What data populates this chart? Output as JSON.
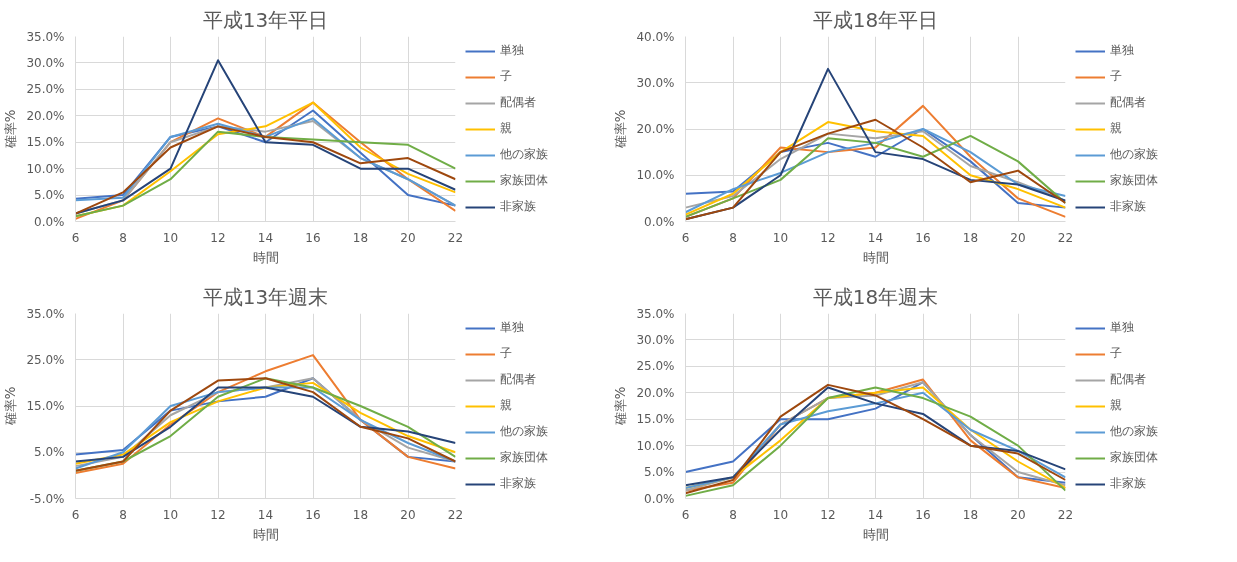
{
  "chart_data": [
    {
      "type": "line",
      "title": "平成13年平日",
      "xlabel": "時間",
      "ylabel": "確率%",
      "x": [
        6,
        8,
        10,
        12,
        14,
        16,
        18,
        20,
        22
      ],
      "xlim": [
        6,
        22
      ],
      "xticks": [
        6,
        8,
        10,
        12,
        14,
        16,
        18,
        20,
        22
      ],
      "ylim": [
        0,
        35
      ],
      "yticks": [
        {
          "value": 0,
          "label": "0.0%"
        },
        {
          "value": 5,
          "label": "5.0%"
        },
        {
          "value": 10,
          "label": "10.0%"
        },
        {
          "value": 15,
          "label": "15.0%"
        },
        {
          "value": 20,
          "label": "20.0%"
        },
        {
          "value": 25,
          "label": "25.0%"
        },
        {
          "value": 30,
          "label": "30.0%"
        },
        {
          "value": 35,
          "label": "35.0%"
        }
      ],
      "grid": true,
      "legend": "right",
      "marker": "none",
      "line_style": "solid",
      "series": [
        {
          "name": "単独",
          "color": "#4472c4",
          "values": [
            4.3,
            5,
            16,
            18,
            15,
            21,
            13,
            5,
            3
          ]
        },
        {
          "name": "子",
          "color": "#ed7d31",
          "values": [
            0.5,
            4,
            15,
            19.5,
            16,
            22.5,
            15,
            8,
            2
          ]
        },
        {
          "name": "配偶者",
          "color": "#a5a5a5",
          "values": [
            1.5,
            4,
            15,
            18,
            17,
            19,
            12,
            8,
            3
          ]
        },
        {
          "name": "親",
          "color": "#ffc000",
          "values": [
            1,
            3,
            9.5,
            16.5,
            18,
            22.5,
            14,
            9,
            5.5
          ]
        },
        {
          "name": "他の家族",
          "color": "#5b9bd5",
          "values": [
            4,
            4.5,
            16,
            18.5,
            16,
            19.5,
            12,
            8,
            3
          ]
        },
        {
          "name": "家族団体",
          "color": "#70ad47",
          "values": [
            1,
            3,
            8,
            17,
            16,
            15.5,
            15,
            14.5,
            10
          ]
        },
        {
          "name": "非家族",
          "color": "#264478",
          "values": [
            1.5,
            4,
            10,
            30.5,
            15,
            14.5,
            10,
            10,
            6
          ]
        },
        {
          "color": "#9e480e",
          "values": [
            1.5,
            5.5,
            14,
            18,
            16,
            15,
            11,
            12,
            8
          ]
        }
      ]
    },
    {
      "type": "line",
      "title": "平成18年平日",
      "xlabel": "時間",
      "ylabel": "確率%",
      "x": [
        6,
        8,
        10,
        12,
        14,
        16,
        18,
        20,
        22
      ],
      "xlim": [
        6,
        22
      ],
      "xticks": [
        6,
        8,
        10,
        12,
        14,
        16,
        18,
        20,
        22
      ],
      "ylim": [
        0,
        40
      ],
      "yticks": [
        {
          "value": 0,
          "label": "0.0%"
        },
        {
          "value": 10,
          "label": "10.0%"
        },
        {
          "value": 20,
          "label": "20.0%"
        },
        {
          "value": 30,
          "label": "30.0%"
        },
        {
          "value": 40,
          "label": "40.0%"
        }
      ],
      "grid": true,
      "legend": "right",
      "marker": "none",
      "line_style": "solid",
      "series": [
        {
          "name": "単独",
          "color": "#4472c4",
          "values": [
            6,
            6.5,
            15,
            17,
            14,
            20,
            13,
            4,
            3
          ]
        },
        {
          "name": "子",
          "color": "#ed7d31",
          "values": [
            1,
            5,
            16,
            15,
            16,
            25,
            14,
            5,
            1
          ]
        },
        {
          "name": "配偶者",
          "color": "#a5a5a5",
          "values": [
            3,
            5.5,
            13.5,
            19,
            18,
            19.5,
            12,
            8.5,
            4.5
          ]
        },
        {
          "name": "親",
          "color": "#ffc000",
          "values": [
            1.5,
            6,
            15,
            21.5,
            19.5,
            18.5,
            10,
            7,
            3
          ]
        },
        {
          "name": "他の家族",
          "color": "#5b9bd5",
          "values": [
            2,
            7,
            10.5,
            15,
            17,
            20,
            15,
            8,
            5.5
          ]
        },
        {
          "name": "家族団体",
          "color": "#70ad47",
          "values": [
            1,
            5,
            9,
            18,
            17,
            14,
            18.5,
            13,
            4
          ]
        },
        {
          "name": "非家族",
          "color": "#264478",
          "values": [
            0.5,
            3,
            10,
            33,
            15,
            13.5,
            9,
            8,
            4.5
          ]
        },
        {
          "color": "#9e480e",
          "values": [
            0.5,
            3,
            15,
            19,
            22,
            16,
            8.5,
            11,
            4
          ]
        }
      ]
    },
    {
      "type": "line",
      "title": "平成13年週末",
      "xlabel": "時間",
      "ylabel": "確率%",
      "x": [
        6,
        8,
        10,
        12,
        14,
        16,
        18,
        20,
        22
      ],
      "xlim": [
        6,
        22
      ],
      "xticks": [
        6,
        8,
        10,
        12,
        14,
        16,
        18,
        20,
        22
      ],
      "ylim": [
        -5,
        35
      ],
      "yticks": [
        {
          "value": -5,
          "label": "-5.0%"
        },
        {
          "value": 5,
          "label": "5.0%"
        },
        {
          "value": 15,
          "label": "15.0%"
        },
        {
          "value": 25,
          "label": "25.0%"
        },
        {
          "value": 35,
          "label": "35.0%"
        }
      ],
      "grid": true,
      "legend": "right",
      "marker": "none",
      "line_style": "solid",
      "series": [
        {
          "name": "単独",
          "color": "#4472c4",
          "values": [
            4.5,
            5.5,
            14,
            16,
            17,
            21,
            12,
            4,
            3
          ]
        },
        {
          "name": "子",
          "color": "#ed7d31",
          "values": [
            0.5,
            2.5,
            11,
            18,
            22.5,
            26,
            12,
            4,
            1.5
          ]
        },
        {
          "name": "配偶者",
          "color": "#a5a5a5",
          "values": [
            2,
            4,
            13,
            18,
            19,
            21,
            12,
            6,
            3
          ]
        },
        {
          "name": "親",
          "color": "#ffc000",
          "values": [
            2.5,
            4.5,
            11.5,
            16,
            19,
            20,
            13.5,
            8.5,
            5
          ]
        },
        {
          "name": "他の家族",
          "color": "#5b9bd5",
          "values": [
            1.5,
            5,
            15,
            18,
            19,
            19,
            12,
            7,
            3
          ]
        },
        {
          "name": "家族団体",
          "color": "#70ad47",
          "values": [
            1,
            3,
            8.5,
            17,
            21,
            19,
            15,
            10.5,
            4
          ]
        },
        {
          "name": "非家族",
          "color": "#264478",
          "values": [
            3,
            4,
            10.5,
            19,
            19,
            17,
            10.5,
            9.5,
            7
          ]
        },
        {
          "color": "#9e480e",
          "values": [
            1,
            3,
            14,
            20.5,
            21,
            18,
            10.5,
            8,
            3
          ]
        }
      ]
    },
    {
      "type": "line",
      "title": "平成18年週末",
      "xlabel": "時間",
      "ylabel": "確率%",
      "x": [
        6,
        8,
        10,
        12,
        14,
        16,
        18,
        20,
        22
      ],
      "xlim": [
        6,
        22
      ],
      "xticks": [
        6,
        8,
        10,
        12,
        14,
        16,
        18,
        20,
        22
      ],
      "ylim": [
        0,
        35
      ],
      "yticks": [
        {
          "value": 0,
          "label": "0.0%"
        },
        {
          "value": 5,
          "label": "5.0%"
        },
        {
          "value": 10,
          "label": "10.0%"
        },
        {
          "value": 15,
          "label": "15.0%"
        },
        {
          "value": 20,
          "label": "20.0%"
        },
        {
          "value": 25,
          "label": "25.0%"
        },
        {
          "value": 30,
          "label": "30.0%"
        },
        {
          "value": 35,
          "label": "35.0%"
        }
      ],
      "grid": true,
      "legend": "right",
      "marker": "none",
      "line_style": "solid",
      "series": [
        {
          "name": "単独",
          "color": "#4472c4",
          "values": [
            5,
            7,
            15,
            15,
            17,
            22,
            12,
            4,
            3
          ]
        },
        {
          "name": "子",
          "color": "#ed7d31",
          "values": [
            1.5,
            3,
            14,
            19,
            20,
            22.5,
            11,
            4,
            2
          ]
        },
        {
          "name": "配偶者",
          "color": "#a5a5a5",
          "values": [
            1.5,
            4,
            14,
            19,
            19.5,
            22,
            12,
            5,
            2.5
          ]
        },
        {
          "name": "親",
          "color": "#ffc000",
          "values": [
            2,
            4,
            11,
            19,
            20,
            21,
            13,
            7,
            2
          ]
        },
        {
          "name": "他の家族",
          "color": "#5b9bd5",
          "values": [
            2,
            4,
            14,
            16.5,
            18,
            20,
            13,
            9,
            4
          ]
        },
        {
          "name": "家族団体",
          "color": "#70ad47",
          "values": [
            0.5,
            2.5,
            10,
            19,
            21,
            19,
            15.5,
            10,
            1.5
          ]
        },
        {
          "name": "非家族",
          "color": "#264478",
          "values": [
            2.5,
            4,
            13,
            21,
            18,
            16,
            10,
            9,
            5.5
          ]
        },
        {
          "color": "#9e480e",
          "values": [
            1,
            3.5,
            15.5,
            21.5,
            19.5,
            15,
            10,
            8.5,
            3.5
          ]
        }
      ]
    }
  ]
}
